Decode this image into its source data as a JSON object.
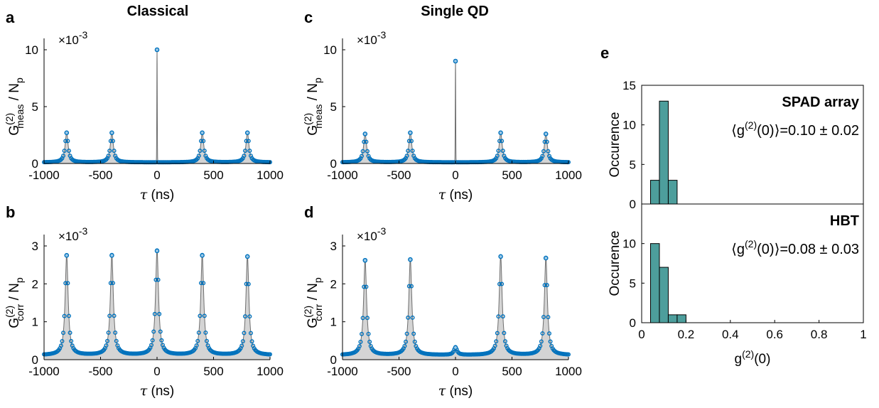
{
  "column_titles": {
    "left": "Classical",
    "middle": "Single QD"
  },
  "panel_letters": {
    "a": "a",
    "b": "b",
    "c": "c",
    "d": "d",
    "e": "e"
  },
  "scale_factor_label": "×10",
  "scale_factor_exponent": "-3",
  "tau_label_symbol": "τ",
  "tau_label_unit": " (ns)",
  "ylabel_meas": {
    "base": "G",
    "sup": "(2)",
    "sub": "meas",
    "tail": " / N",
    "tail_sub": "p"
  },
  "ylabel_corr": {
    "base": "G",
    "sup": "(2)",
    "sub": "corr",
    "tail": " / N",
    "tail_sub": "p"
  },
  "hist_ylabel": "Occurence",
  "hist_xlabel": {
    "base": "g",
    "sup": "(2)",
    "tail": "(0)"
  },
  "colors": {
    "marker": "#0072BD",
    "fill": "#d4d4d4",
    "line": "#6e6e6e",
    "hist": "#4d9e9c"
  },
  "chart_data": [
    {
      "id": "a",
      "type": "line",
      "title": "",
      "xlabel": "τ (ns)",
      "ylabel": "G(2)meas / Np",
      "xlim": [
        -1000,
        1000
      ],
      "ylim": [
        0,
        10
      ],
      "y_multiplier": "×10^-3",
      "xticks": [
        "-1000",
        "-500",
        "0",
        "500",
        "1000"
      ],
      "yticks": [
        "0",
        "5",
        "10"
      ],
      "peak_centers": [
        -800,
        -400,
        0,
        400,
        800
      ],
      "peak_heights": [
        2.7,
        2.7,
        10.0,
        2.7,
        2.7
      ],
      "baseline": 0.1
    },
    {
      "id": "b",
      "type": "line",
      "title": "",
      "xlabel": "τ (ns)",
      "ylabel": "G(2)corr / Np",
      "xlim": [
        -1000,
        1000
      ],
      "ylim": [
        0,
        3
      ],
      "y_multiplier": "×10^-3",
      "xticks": [
        "-1000",
        "-500",
        "0",
        "500",
        "1000"
      ],
      "yticks": [
        "0",
        "1",
        "2",
        "3"
      ],
      "peak_centers": [
        -800,
        -400,
        0,
        400,
        800
      ],
      "peak_heights": [
        2.75,
        2.75,
        2.87,
        2.75,
        2.72
      ],
      "baseline": 0.12
    },
    {
      "id": "c",
      "type": "line",
      "title": "",
      "xlabel": "τ (ns)",
      "ylabel": "G(2)meas / Np",
      "xlim": [
        -1000,
        1000
      ],
      "ylim": [
        0,
        10
      ],
      "y_multiplier": "×10^-3",
      "xticks": [
        "-1000",
        "-500",
        "0",
        "500",
        "1000"
      ],
      "yticks": [
        "0",
        "5",
        "10"
      ],
      "peak_centers": [
        -800,
        -400,
        0,
        400,
        800
      ],
      "peak_heights": [
        2.6,
        2.7,
        9.0,
        2.7,
        2.6
      ],
      "baseline": 0.1
    },
    {
      "id": "d",
      "type": "line",
      "title": "",
      "xlabel": "τ (ns)",
      "ylabel": "G(2)corr / Np",
      "xlim": [
        -1000,
        1000
      ],
      "ylim": [
        0,
        3
      ],
      "y_multiplier": "×10^-3",
      "xticks": [
        "-1000",
        "-500",
        "0",
        "500",
        "1000"
      ],
      "yticks": [
        "0",
        "1",
        "2",
        "3"
      ],
      "peak_centers": [
        -800,
        -400,
        0,
        400,
        800
      ],
      "peak_heights": [
        2.62,
        2.64,
        0.32,
        2.72,
        2.68
      ],
      "baseline": 0.12
    },
    {
      "id": "e-top",
      "type": "bar",
      "annotation_title": "SPAD array",
      "annotation_value": "=0.10 ± 0.02",
      "xlim": [
        0,
        1
      ],
      "ylim": [
        0,
        15
      ],
      "yticks": [
        "0",
        "5",
        "10",
        "15"
      ],
      "bin_edges": [
        0.04,
        0.08,
        0.12,
        0.16
      ],
      "counts": [
        3,
        13,
        3
      ]
    },
    {
      "id": "e-bottom",
      "type": "bar",
      "annotation_title": "HBT",
      "annotation_value": "=0.08 ± 0.03",
      "xlim": [
        0,
        1
      ],
      "ylim": [
        0,
        15
      ],
      "yticks": [
        "0",
        "5",
        "10"
      ],
      "xticks": [
        "0",
        "0.2",
        "0.4",
        "0.6",
        "0.8",
        "1"
      ],
      "bin_edges": [
        0.04,
        0.08,
        0.12,
        0.16,
        0.2
      ],
      "counts": [
        10,
        7,
        1,
        1
      ]
    }
  ]
}
